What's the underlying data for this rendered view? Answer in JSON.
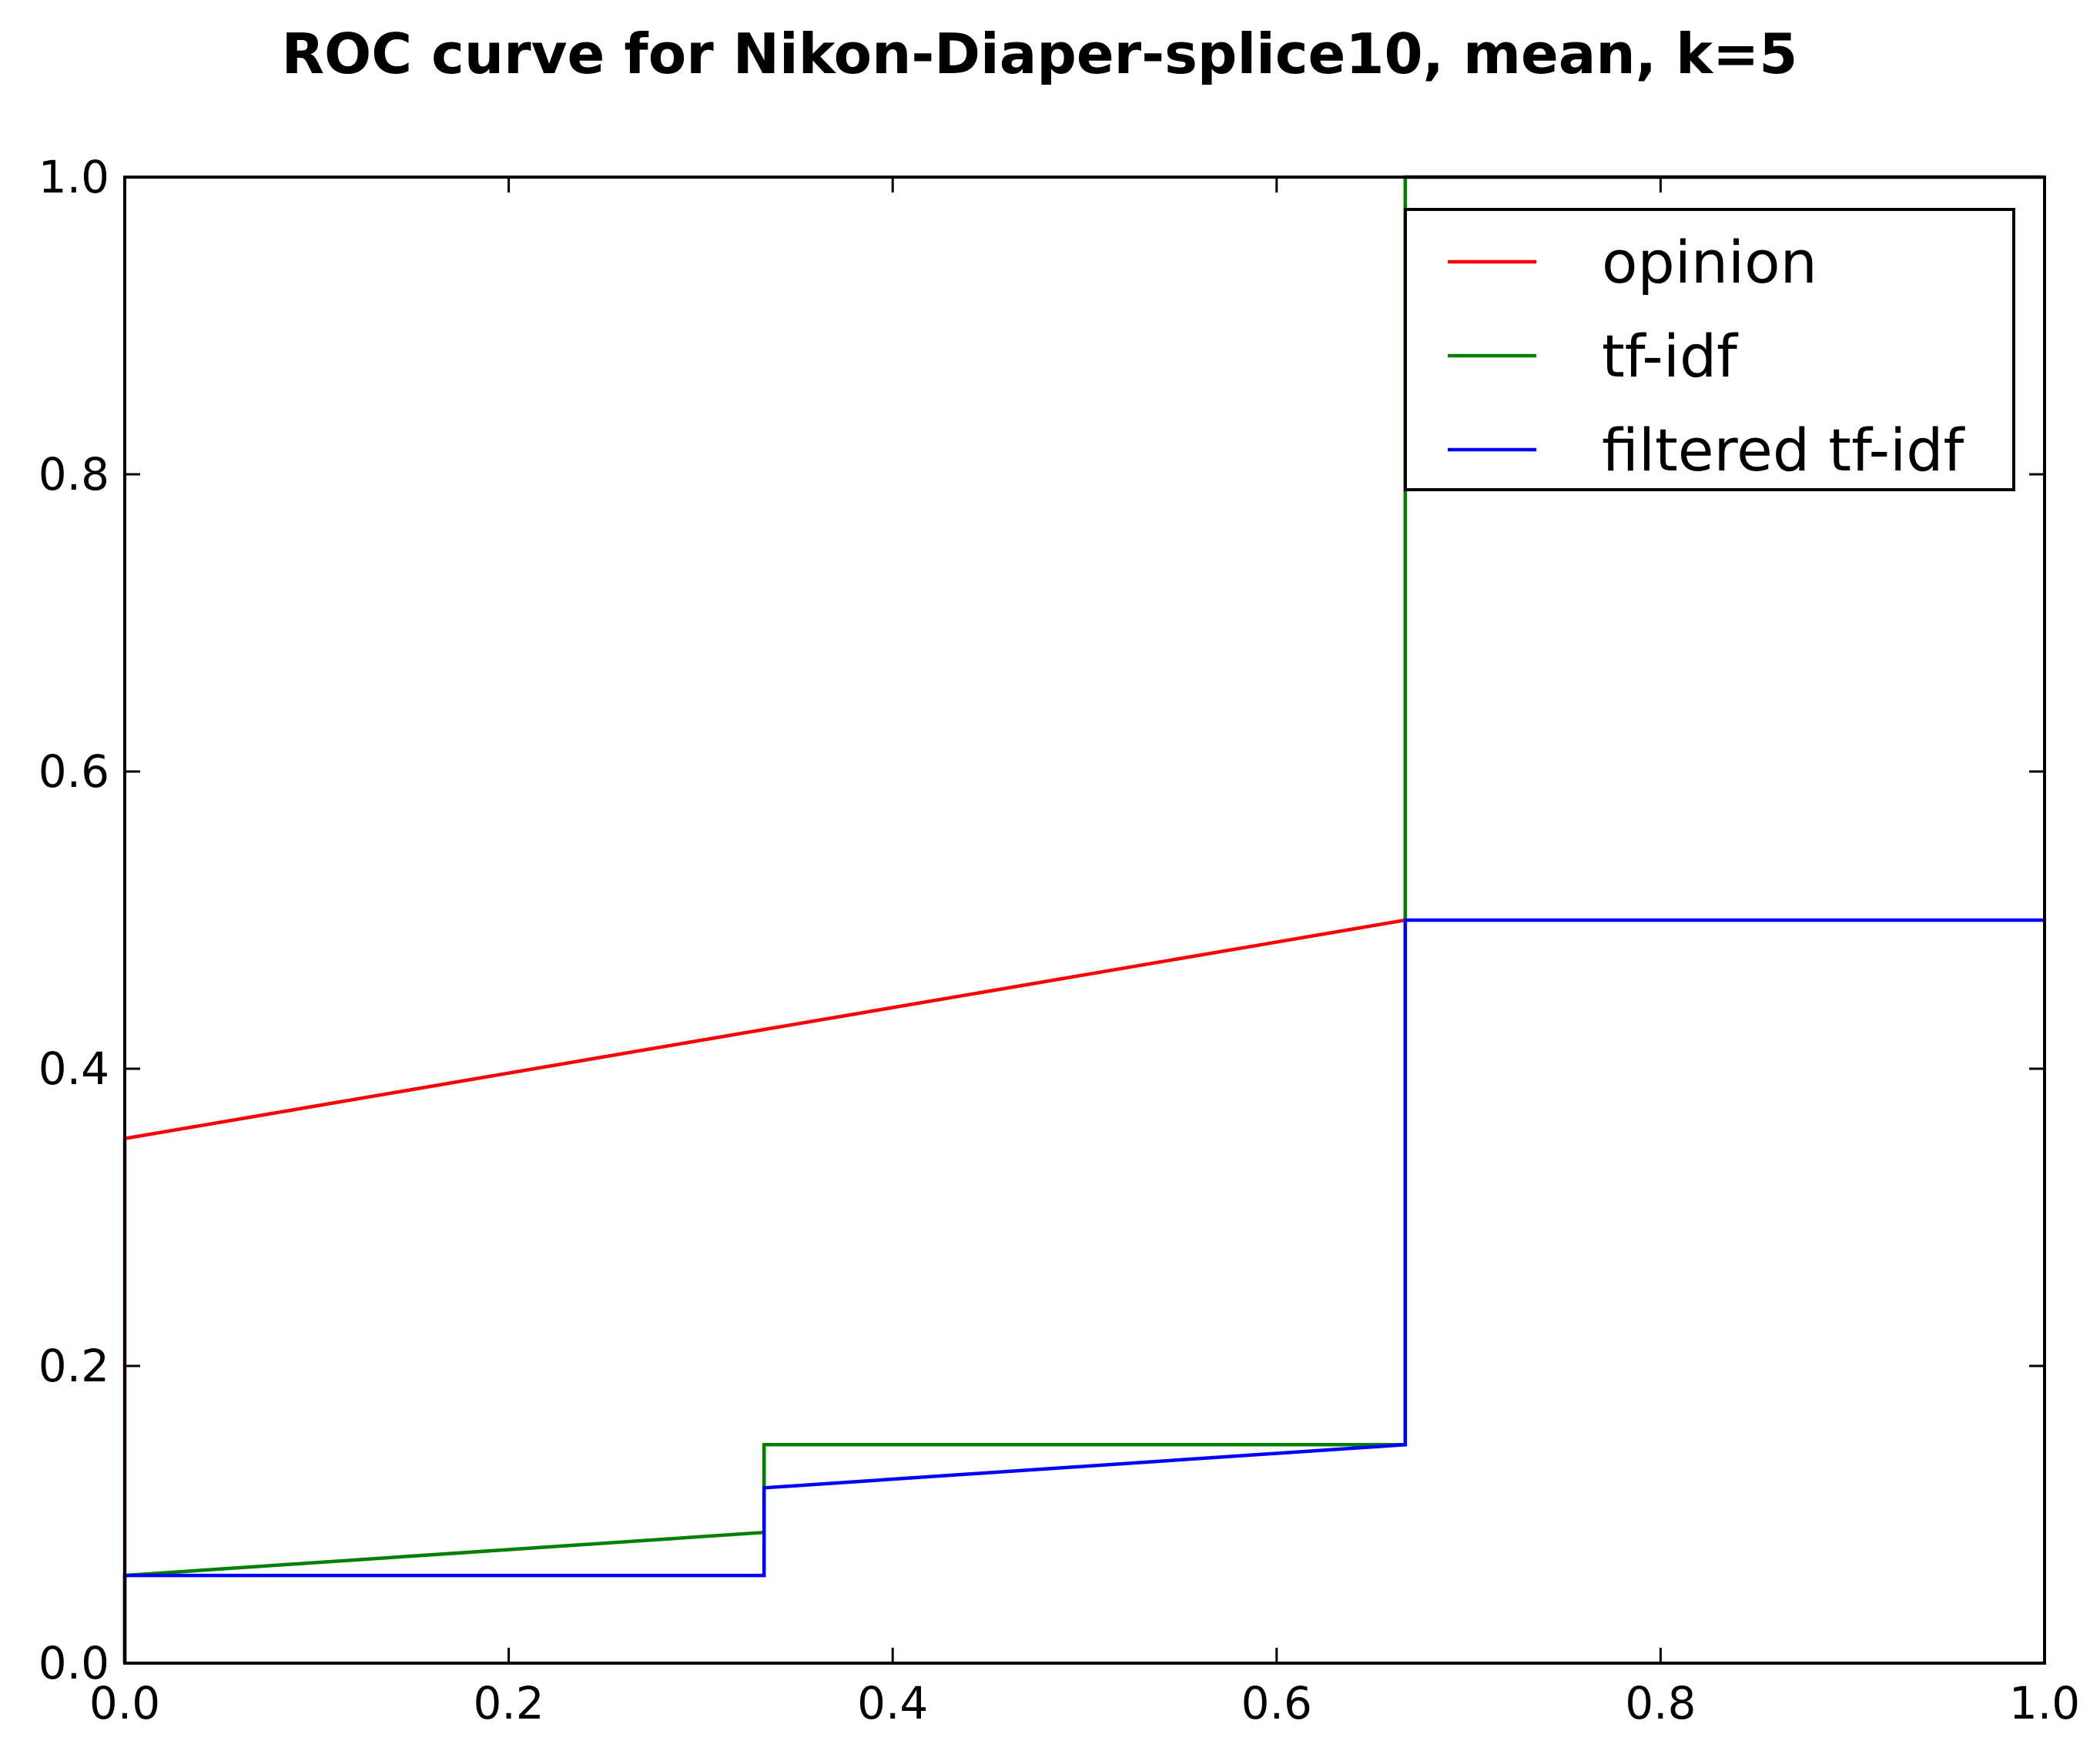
{
  "chart_data": {
    "type": "line",
    "title": "ROC curve for Nikon-Diaper-splice10, mean, k=5",
    "xlabel": "",
    "ylabel": "",
    "xlim": [
      0.0,
      1.0
    ],
    "ylim": [
      0.0,
      1.0
    ],
    "x_ticks": [
      "0.0",
      "0.2",
      "0.4",
      "0.6",
      "0.8",
      "1.0"
    ],
    "y_ticks": [
      "0.0",
      "0.2",
      "0.4",
      "0.6",
      "0.8",
      "1.0"
    ],
    "grid": false,
    "legend_position": "top-right",
    "series": [
      {
        "name": "opinion",
        "color": "#ff0000",
        "points": [
          [
            0.0,
            0.0
          ],
          [
            0.0,
            0.353
          ],
          [
            0.667,
            0.5
          ],
          [
            0.667,
            1.0
          ],
          [
            1.0,
            1.0
          ]
        ]
      },
      {
        "name": "tf-idf",
        "color": "#008000",
        "points": [
          [
            0.0,
            0.0
          ],
          [
            0.0,
            0.059
          ],
          [
            0.333,
            0.088
          ],
          [
            0.333,
            0.147
          ],
          [
            0.667,
            0.147
          ],
          [
            0.667,
            0.765
          ],
          [
            0.667,
            1.0
          ],
          [
            1.0,
            1.0
          ]
        ]
      },
      {
        "name": "filtered tf-idf",
        "color": "#0000ff",
        "points": [
          [
            0.0,
            0.0
          ],
          [
            0.0,
            0.059
          ],
          [
            0.333,
            0.059
          ],
          [
            0.333,
            0.118
          ],
          [
            0.667,
            0.147
          ],
          [
            0.667,
            0.5
          ],
          [
            1.0,
            0.5
          ]
        ]
      }
    ]
  }
}
